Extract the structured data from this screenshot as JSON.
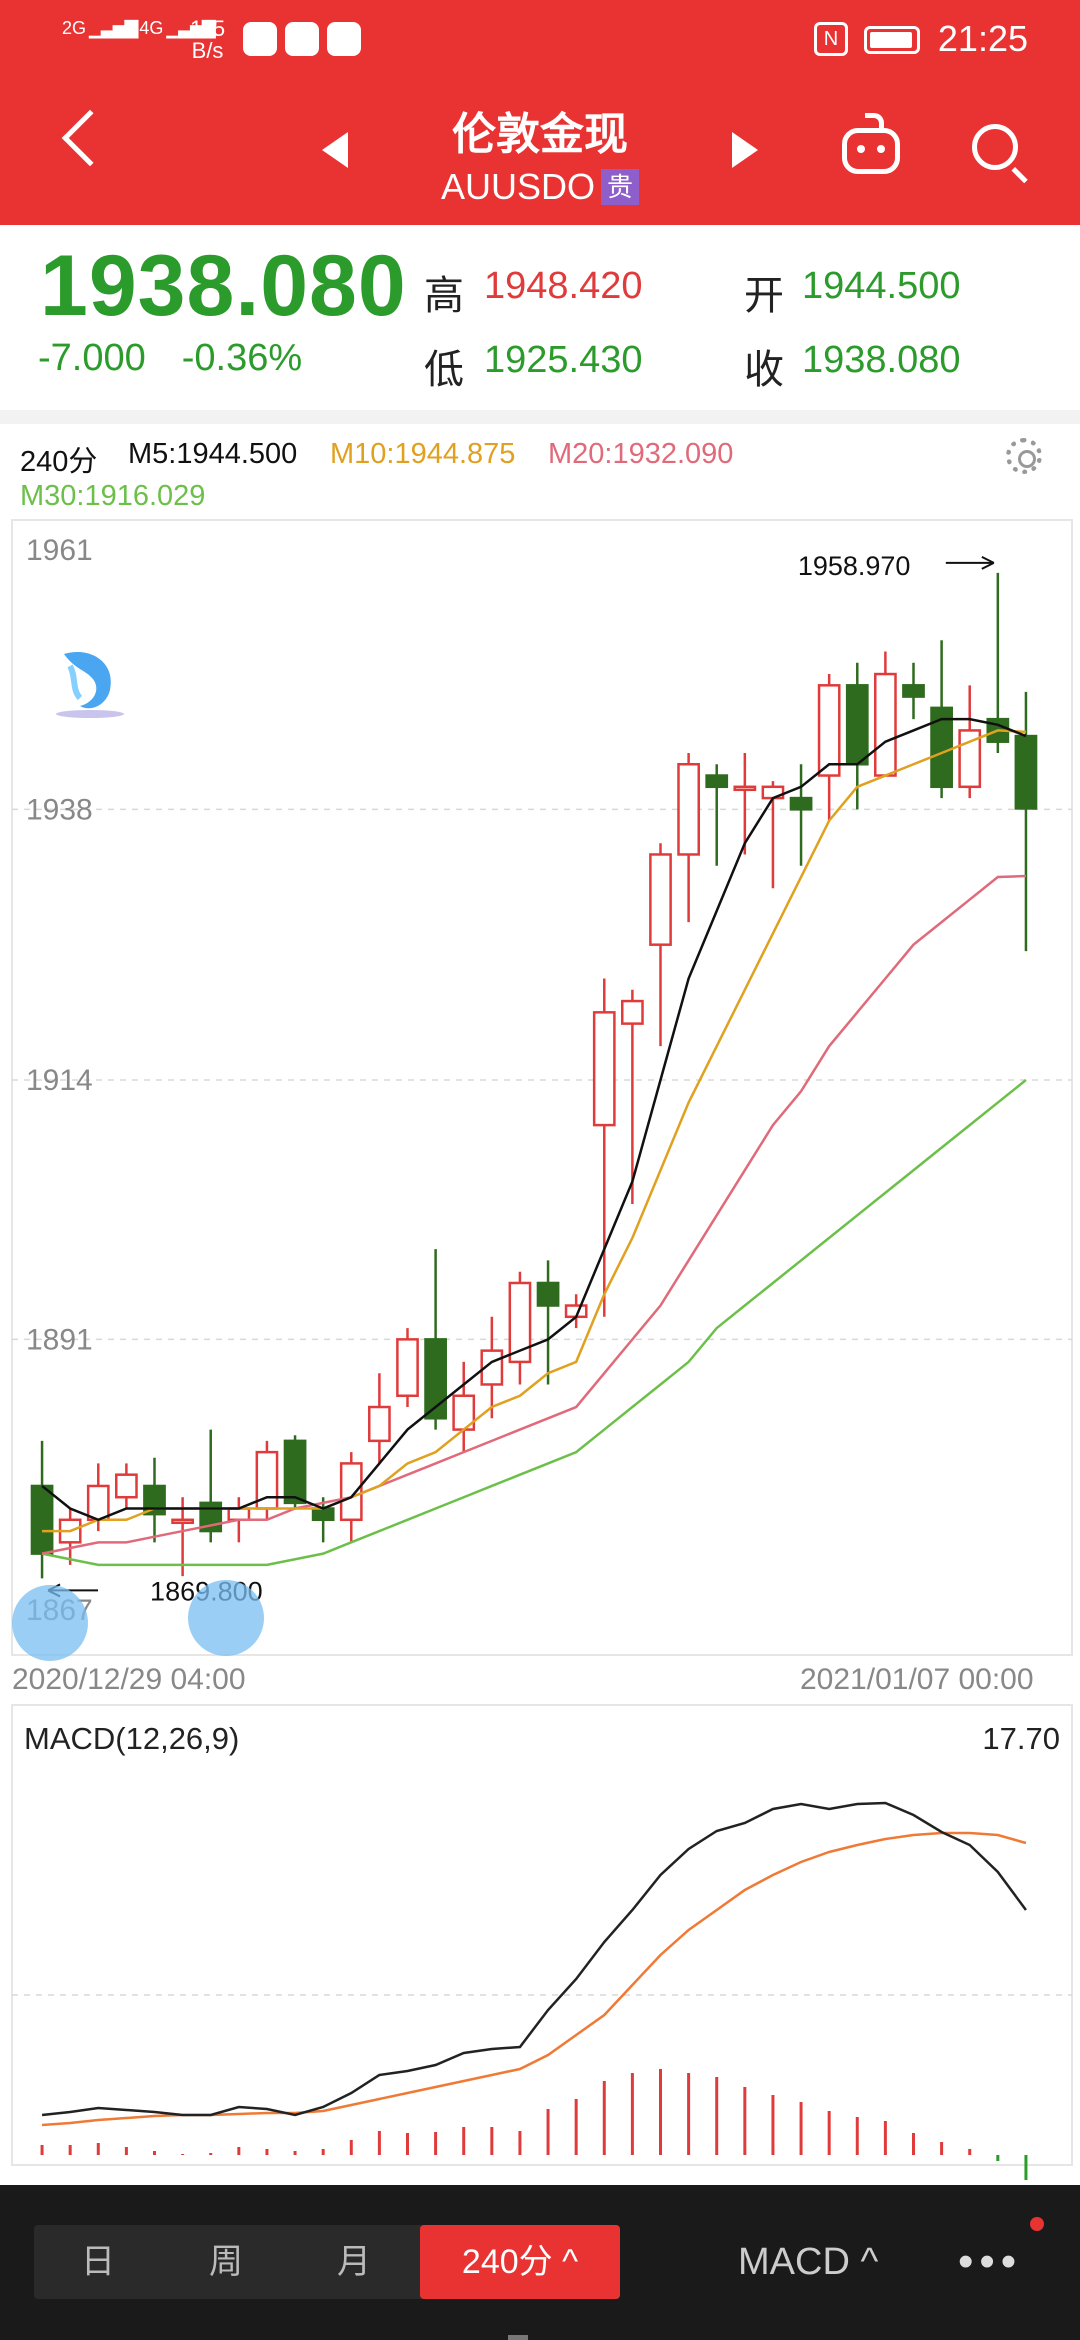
{
  "status": {
    "sim1": "2G",
    "sim2": "4G",
    "net_speed": "115",
    "net_unit": "B/s",
    "time": "21:25",
    "nfc": "N"
  },
  "nav": {
    "title": "伦敦金现",
    "subtitle": "AUUSDO",
    "tag": "贵"
  },
  "quote": {
    "price": "1938.080",
    "change": "-7.000",
    "change_pct": "-0.36%",
    "high_label": "高",
    "high": "1948.420",
    "low_label": "低",
    "low": "1925.430",
    "open_label": "开",
    "open": "1944.500",
    "close_label": "收",
    "close": "1938.080"
  },
  "ma_legend": {
    "period": "240分",
    "m5": "M5:1944.500",
    "m10": "M10:1944.875",
    "m20": "M20:1932.090",
    "m30": "M30:1916.029",
    "colors": {
      "m5": "#111111",
      "m10": "#e0a020",
      "m20": "#e06a7a",
      "m30": "#6cc04a"
    }
  },
  "chart_data": {
    "type": "candlestick",
    "y_ticks": [
      "1961",
      "1938",
      "1914",
      "1891",
      "1867"
    ],
    "ylim": [
      1867,
      1961
    ],
    "max_label": "1958.970",
    "min_label": "1869.800",
    "start_date": "2020/12/29 04:00",
    "end_date": "2021/01/07 00:00",
    "candles": [
      {
        "o": 1878,
        "c": 1872,
        "h": 1882,
        "l": 1869.8
      },
      {
        "o": 1873,
        "c": 1875,
        "h": 1876,
        "l": 1871
      },
      {
        "o": 1875,
        "c": 1878,
        "h": 1880,
        "l": 1874
      },
      {
        "o": 1877,
        "c": 1879,
        "h": 1880,
        "l": 1876
      },
      {
        "o": 1878,
        "c": 1875.5,
        "h": 1880.5,
        "l": 1873
      },
      {
        "o": 1875,
        "c": 1875,
        "h": 1877,
        "l": 1870
      },
      {
        "o": 1876.5,
        "c": 1874,
        "h": 1883,
        "l": 1873
      },
      {
        "o": 1875,
        "c": 1876,
        "h": 1877,
        "l": 1873
      },
      {
        "o": 1876,
        "c": 1881,
        "h": 1882,
        "l": 1875
      },
      {
        "o": 1882,
        "c": 1876.5,
        "h": 1882.5,
        "l": 1876
      },
      {
        "o": 1876,
        "c": 1875,
        "h": 1877,
        "l": 1873
      },
      {
        "o": 1875,
        "c": 1880,
        "h": 1881,
        "l": 1873
      },
      {
        "o": 1882,
        "c": 1885,
        "h": 1888,
        "l": 1880
      },
      {
        "o": 1886,
        "c": 1891,
        "h": 1892,
        "l": 1885
      },
      {
        "o": 1891,
        "c": 1884,
        "h": 1899,
        "l": 1883
      },
      {
        "o": 1883,
        "c": 1886,
        "h": 1889,
        "l": 1881
      },
      {
        "o": 1887,
        "c": 1890,
        "h": 1893,
        "l": 1884
      },
      {
        "o": 1889,
        "c": 1896,
        "h": 1897,
        "l": 1887
      },
      {
        "o": 1896,
        "c": 1894,
        "h": 1898,
        "l": 1887
      },
      {
        "o": 1893,
        "c": 1894,
        "h": 1895,
        "l": 1892
      },
      {
        "o": 1910,
        "c": 1920,
        "h": 1923,
        "l": 1893
      },
      {
        "o": 1919,
        "c": 1921,
        "h": 1922,
        "l": 1903
      },
      {
        "o": 1926,
        "c": 1934,
        "h": 1935,
        "l": 1917
      },
      {
        "o": 1934,
        "c": 1942,
        "h": 1943,
        "l": 1928
      },
      {
        "o": 1941,
        "c": 1940,
        "h": 1942,
        "l": 1933
      },
      {
        "o": 1940,
        "c": 1940,
        "h": 1943,
        "l": 1934
      },
      {
        "o": 1939,
        "c": 1940,
        "h": 1940.5,
        "l": 1931
      },
      {
        "o": 1939,
        "c": 1938,
        "h": 1942,
        "l": 1933
      },
      {
        "o": 1941,
        "c": 1949,
        "h": 1950,
        "l": 1937
      },
      {
        "o": 1949,
        "c": 1942,
        "h": 1951,
        "l": 1938
      },
      {
        "o": 1941,
        "c": 1950,
        "h": 1952,
        "l": 1941
      },
      {
        "o": 1949,
        "c": 1948,
        "h": 1951,
        "l": 1946
      },
      {
        "o": 1947,
        "c": 1940,
        "h": 1953,
        "l": 1939
      },
      {
        "o": 1940,
        "c": 1945,
        "h": 1949,
        "l": 1939
      },
      {
        "o": 1946,
        "c": 1944,
        "h": 1958.97,
        "l": 1943
      },
      {
        "o": 1944.5,
        "c": 1938.08,
        "h": 1948.42,
        "l": 1925.43
      }
    ],
    "ma5": [
      1878,
      1876,
      1875,
      1876,
      1876,
      1876,
      1876,
      1876,
      1877,
      1877,
      1876,
      1877,
      1880,
      1883,
      1885,
      1887,
      1889,
      1890,
      1891,
      1893,
      1899,
      1905,
      1914,
      1923,
      1929,
      1935,
      1939,
      1940,
      1942,
      1942,
      1944,
      1945,
      1946,
      1946,
      1945.5,
      1944.5
    ],
    "ma10": [
      1874,
      1874,
      1875,
      1875,
      1876,
      1876,
      1876,
      1876,
      1876,
      1876,
      1876,
      1877,
      1878,
      1880,
      1881,
      1883,
      1885,
      1886,
      1888,
      1889,
      1895,
      1900,
      1906,
      1912,
      1917,
      1922,
      1927,
      1932,
      1937,
      1940,
      1941,
      1942,
      1943,
      1944,
      1945,
      1944.875
    ],
    "ma20": [
      1872,
      1872.5,
      1873,
      1873,
      1873.5,
      1874,
      1874.5,
      1875,
      1875,
      1876,
      1876.5,
      1877,
      1878,
      1879,
      1880,
      1881,
      1882,
      1883,
      1884,
      1885,
      1888,
      1891,
      1894,
      1898,
      1902,
      1906,
      1910,
      1913,
      1917,
      1920,
      1923,
      1926,
      1928,
      1930,
      1932,
      1932.09
    ],
    "ma30": [
      1872,
      1871.5,
      1871,
      1871,
      1871,
      1871,
      1871,
      1871,
      1871,
      1871.5,
      1872,
      1873,
      1874,
      1875,
      1876,
      1877,
      1878,
      1879,
      1880,
      1881,
      1883,
      1885,
      1887,
      1889,
      1892,
      1894,
      1896,
      1898,
      1900,
      1902,
      1904,
      1906,
      1908,
      1910,
      1912,
      1914
    ]
  },
  "macd": {
    "label": "MACD(12,26,9)",
    "value": "17.70",
    "dif": [
      0,
      0.3,
      0.7,
      0.5,
      0.3,
      0,
      0,
      0.8,
      0.6,
      0,
      0.8,
      2.2,
      4,
      4.4,
      5,
      6.2,
      6.6,
      6.8,
      10.5,
      13.6,
      17.3,
      20.5,
      24,
      26.6,
      28.4,
      29.2,
      30.6,
      31.1,
      30.6,
      31.1,
      31.2,
      30,
      28.3,
      27,
      24.3,
      20.5
    ],
    "dea": [
      -1,
      -0.8,
      -0.5,
      -0.3,
      -0.1,
      0,
      0,
      0.1,
      0.2,
      0.2,
      0.4,
      1,
      1.6,
      2.2,
      2.8,
      3.4,
      4,
      4.6,
      6,
      8,
      10,
      13,
      16,
      18.5,
      20.5,
      22.5,
      24,
      25.3,
      26.3,
      27,
      27.6,
      28,
      28.2,
      28.2,
      28,
      27.2
    ],
    "hist": [
      1,
      1,
      1.2,
      0.8,
      0.4,
      0.1,
      0.2,
      0.8,
      0.6,
      0.4,
      0.6,
      1.5,
      2.4,
      2.2,
      2.3,
      2.8,
      2.8,
      2.4,
      4.6,
      5.6,
      7.4,
      8.2,
      8.6,
      8.2,
      7.8,
      6.8,
      6,
      5.3,
      4.4,
      3.8,
      3.4,
      2.2,
      1.3,
      0.6,
      -0.6,
      -2.5
    ],
    "ylim": [
      -3,
      33
    ]
  },
  "bottom": {
    "tabs": [
      "日",
      "周",
      "月",
      "240分"
    ],
    "active_chevron": "^",
    "macd_label": "MACD",
    "more": "•••"
  }
}
